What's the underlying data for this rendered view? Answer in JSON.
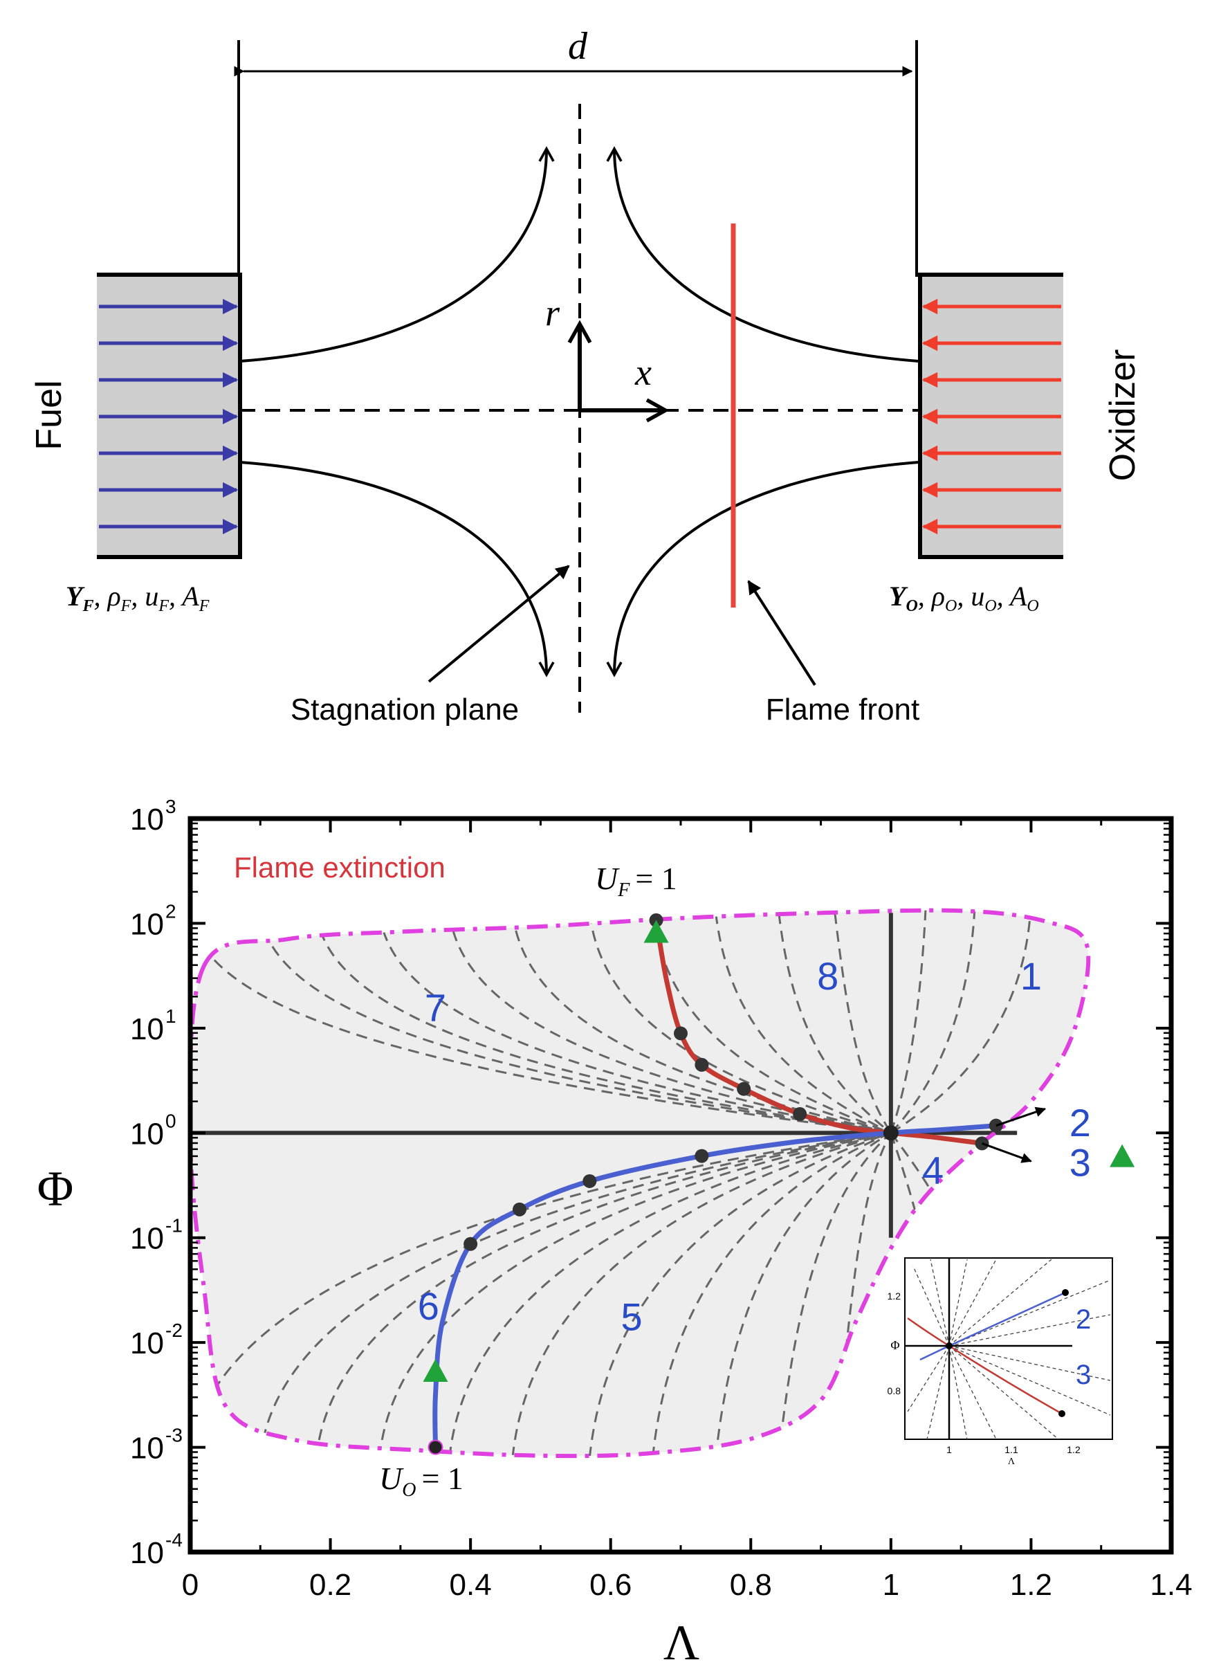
{
  "colors": {
    "fuel_arrows": "#3a3aa6",
    "oxidizer_arrows": "#f03c2b",
    "flame_front": "#e8453c",
    "nozzle_fill": "#cfcfcf",
    "boundary": "#e040e0",
    "fuel_curve": "#c43a32",
    "oxidizer_curve": "#4a5fd0",
    "region_label": "#2a4bc8",
    "extinction_text": "#d8343c",
    "marker_green": "#1fa33a",
    "shade": "#eeeeee"
  },
  "schematic": {
    "distance_label": "d",
    "fuel_label": "Fuel",
    "oxidizer_label": "Oxidizer",
    "r_label": "r",
    "x_label": "x",
    "fuel_props": {
      "Y": "Y",
      "Y_sub": "F",
      "rho": "ρ",
      "rho_sub": "F",
      "u": "u",
      "u_sub": "F",
      "A": "A",
      "A_sub": "F"
    },
    "oxidizer_props": {
      "Y": "Y",
      "Y_sub": "O",
      "rho": "ρ",
      "rho_sub": "O",
      "u": "u",
      "u_sub": "O",
      "A": "A",
      "A_sub": "O"
    },
    "stagnation_label": "Stagnation plane",
    "flame_front_label": "Flame front"
  },
  "chart_data": {
    "type": "line",
    "xlabel": "Λ",
    "ylabel": "Φ",
    "xlim": [
      0,
      1.4
    ],
    "ylim_log10": [
      -4,
      3
    ],
    "x_ticks": [
      0,
      0.2,
      0.4,
      0.6,
      0.8,
      1,
      1.2,
      1.4
    ],
    "x_tick_labels": [
      "0",
      "0.2",
      "0.4",
      "0.6",
      "0.8",
      "1",
      "1.2",
      "1.4"
    ],
    "y_tick_exponents": [
      3,
      2,
      1,
      0,
      -1,
      -2,
      -3,
      -4
    ],
    "y_tick_base": "10",
    "extinction_label": "Flame extinction",
    "uf_label": {
      "sym": "U",
      "sub": "F",
      "rhs": "= 1"
    },
    "uo_label": {
      "sym": "U",
      "sub": "O",
      "rhs": "= 1"
    },
    "regions": [
      {
        "label": "1",
        "x": 1.2,
        "y": 1.5
      },
      {
        "label": "2",
        "x": 1.27,
        "y": 0.1,
        "outside": true
      },
      {
        "label": "3",
        "x": 1.27,
        "y": -0.28,
        "outside": true
      },
      {
        "label": "4",
        "x": 1.06,
        "y": -0.35
      },
      {
        "label": "5",
        "x": 0.63,
        "y": -1.75
      },
      {
        "label": "6",
        "x": 0.34,
        "y": -1.65
      },
      {
        "label": "7",
        "x": 0.35,
        "y": 1.2
      },
      {
        "label": "8",
        "x": 0.91,
        "y": 1.5
      }
    ],
    "boundary": [
      [
        0.02,
        1.6
      ],
      [
        0.14,
        1.85
      ],
      [
        0.3,
        1.92
      ],
      [
        0.5,
        1.97
      ],
      [
        0.7,
        2.05
      ],
      [
        0.9,
        2.1
      ],
      [
        1.1,
        2.12
      ],
      [
        1.22,
        2.02
      ],
      [
        1.28,
        1.78
      ],
      [
        1.26,
        0.95
      ],
      [
        1.2,
        0.3
      ],
      [
        1.12,
        -0.15
      ],
      [
        1.05,
        -0.6
      ],
      [
        1.0,
        -1.1
      ],
      [
        0.95,
        -1.8
      ],
      [
        0.9,
        -2.55
      ],
      [
        0.8,
        -2.92
      ],
      [
        0.65,
        -3.06
      ],
      [
        0.5,
        -3.08
      ],
      [
        0.33,
        -3.03
      ],
      [
        0.15,
        -2.93
      ],
      [
        0.05,
        -2.6
      ],
      [
        0.02,
        -1.5
      ],
      [
        0.0,
        0.0
      ]
    ],
    "series": [
      {
        "name": "U_F = 1 branch",
        "color_key": "fuel_curve",
        "points": [
          [
            0.665,
            2.03
          ],
          [
            0.68,
            1.45
          ],
          [
            0.7,
            0.95
          ],
          [
            0.73,
            0.65
          ],
          [
            0.79,
            0.42
          ],
          [
            0.87,
            0.18
          ],
          [
            0.94,
            0.05
          ],
          [
            1.0,
            0.0
          ],
          [
            1.06,
            -0.04
          ],
          [
            1.13,
            -0.1
          ]
        ],
        "markers": [
          [
            0.665,
            2.03
          ],
          [
            0.7,
            0.95
          ],
          [
            0.73,
            0.65
          ],
          [
            0.79,
            0.42
          ],
          [
            0.87,
            0.18
          ],
          [
            1.13,
            -0.1
          ]
        ]
      },
      {
        "name": "U_O = 1 branch",
        "color_key": "oxidizer_curve",
        "points": [
          [
            0.35,
            -3.0
          ],
          [
            0.35,
            -2.5
          ],
          [
            0.36,
            -1.8
          ],
          [
            0.4,
            -1.06
          ],
          [
            0.47,
            -0.73
          ],
          [
            0.57,
            -0.46
          ],
          [
            0.73,
            -0.22
          ],
          [
            0.87,
            -0.08
          ],
          [
            1.0,
            0.0
          ],
          [
            1.07,
            0.03
          ],
          [
            1.15,
            0.07
          ]
        ],
        "markers": [
          [
            0.35,
            -3.0
          ],
          [
            0.4,
            -1.06
          ],
          [
            0.47,
            -0.73
          ],
          [
            0.57,
            -0.46
          ],
          [
            0.73,
            -0.22
          ],
          [
            1.15,
            0.07
          ]
        ]
      }
    ],
    "green_triangles": [
      [
        0.665,
        1.92
      ],
      [
        0.35,
        -2.27
      ],
      [
        1.33,
        -0.22
      ]
    ],
    "inset": {
      "ylabel": "Φ",
      "xlabel": "Λ",
      "x_ticks": [
        "1",
        "1.1",
        "1.2"
      ],
      "y_ticks": [
        "1.2",
        "0.8"
      ],
      "labels": [
        "2",
        "3"
      ]
    }
  }
}
